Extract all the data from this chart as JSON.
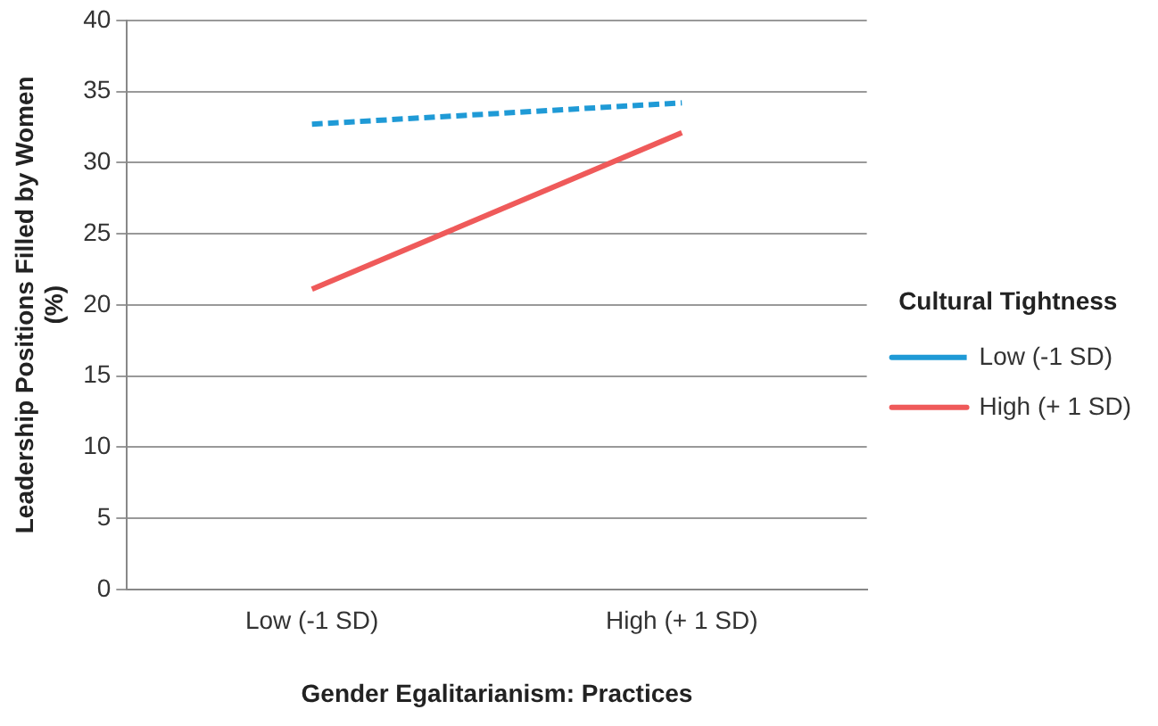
{
  "chart_data": {
    "type": "line",
    "xlabel": "Gender Egalitarianism: Practices",
    "ylabel": "Leadership Positions Filled by Women (%)",
    "legend_title": "Cultural Tightness",
    "categories": [
      "Low (-1 SD)",
      "High (+ 1 SD)"
    ],
    "series": [
      {
        "name": "Low (-1 SD)",
        "color": "#1f9ad6",
        "values": [
          32.7,
          34.2
        ],
        "line_style": "dashed"
      },
      {
        "name": "High (+ 1 SD)",
        "color": "#ef5a5a",
        "values": [
          21.1,
          32.1
        ],
        "line_style": "solid"
      }
    ],
    "ylim": [
      0,
      40
    ],
    "yticks": [
      0,
      5,
      10,
      15,
      20,
      25,
      30,
      35,
      40
    ],
    "grid": "y",
    "legend": "right",
    "marker": "none"
  }
}
